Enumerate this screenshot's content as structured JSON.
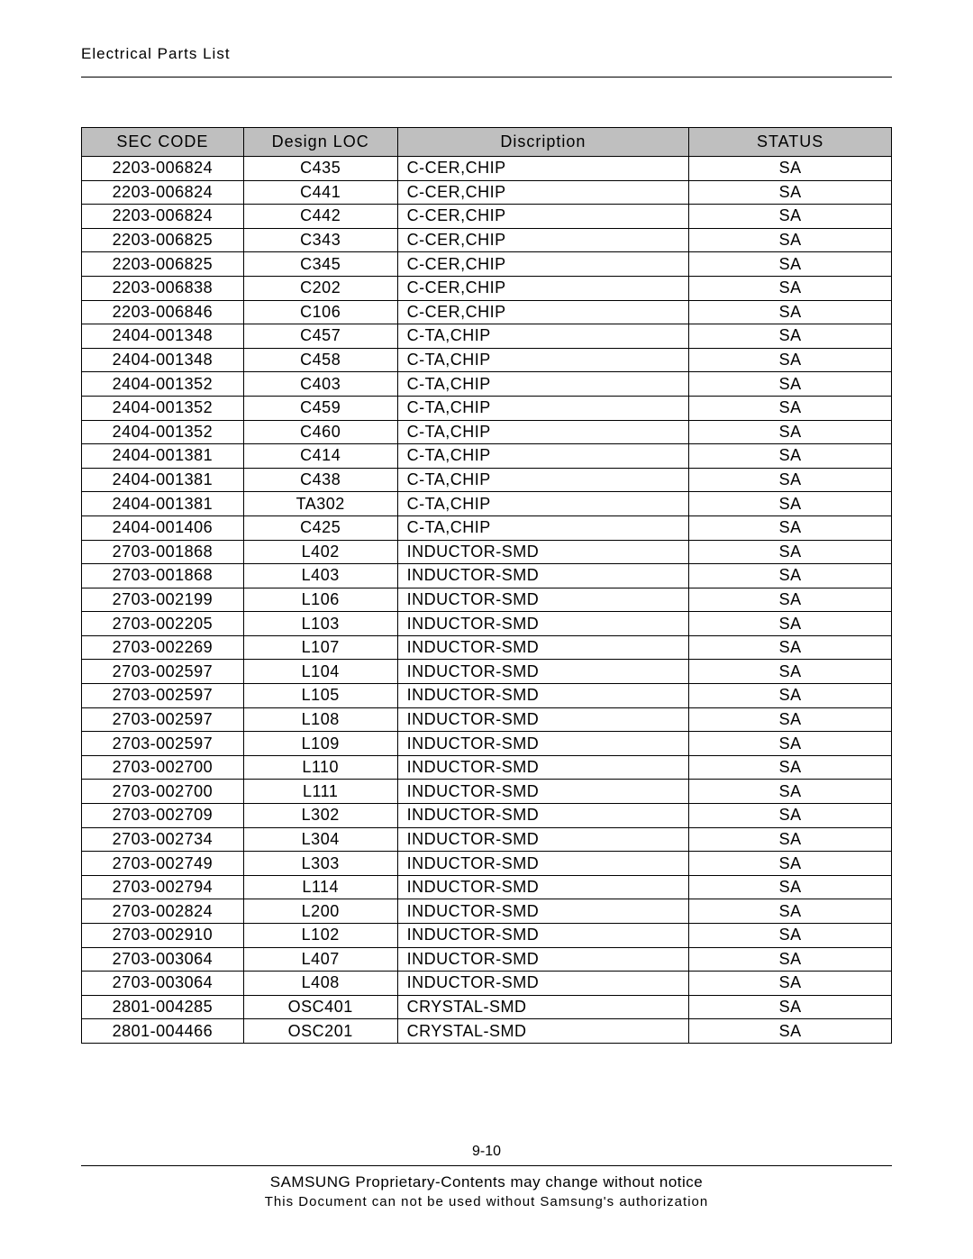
{
  "header": {
    "title": "Electrical Parts List"
  },
  "table": {
    "columns": [
      "SEC CODE",
      "Design LOC",
      "Discription",
      "STATUS"
    ],
    "column_align": [
      "center",
      "center",
      "left",
      "center"
    ],
    "header_bg": "#bfbfbf",
    "border_color": "#000000",
    "rows": [
      [
        "2203-006824",
        "C435",
        "C-CER,CHIP",
        "SA"
      ],
      [
        "2203-006824",
        "C441",
        "C-CER,CHIP",
        "SA"
      ],
      [
        "2203-006824",
        "C442",
        "C-CER,CHIP",
        "SA"
      ],
      [
        "2203-006825",
        "C343",
        "C-CER,CHIP",
        "SA"
      ],
      [
        "2203-006825",
        "C345",
        "C-CER,CHIP",
        "SA"
      ],
      [
        "2203-006838",
        "C202",
        "C-CER,CHIP",
        "SA"
      ],
      [
        "2203-006846",
        "C106",
        "C-CER,CHIP",
        "SA"
      ],
      [
        "2404-001348",
        "C457",
        "C-TA,CHIP",
        "SA"
      ],
      [
        "2404-001348",
        "C458",
        "C-TA,CHIP",
        "SA"
      ],
      [
        "2404-001352",
        "C403",
        "C-TA,CHIP",
        "SA"
      ],
      [
        "2404-001352",
        "C459",
        "C-TA,CHIP",
        "SA"
      ],
      [
        "2404-001352",
        "C460",
        "C-TA,CHIP",
        "SA"
      ],
      [
        "2404-001381",
        "C414",
        "C-TA,CHIP",
        "SA"
      ],
      [
        "2404-001381",
        "C438",
        "C-TA,CHIP",
        "SA"
      ],
      [
        "2404-001381",
        "TA302",
        "C-TA,CHIP",
        "SA"
      ],
      [
        "2404-001406",
        "C425",
        "C-TA,CHIP",
        "SA"
      ],
      [
        "2703-001868",
        "L402",
        "INDUCTOR-SMD",
        "SA"
      ],
      [
        "2703-001868",
        "L403",
        "INDUCTOR-SMD",
        "SA"
      ],
      [
        "2703-002199",
        "L106",
        "INDUCTOR-SMD",
        "SA"
      ],
      [
        "2703-002205",
        "L103",
        "INDUCTOR-SMD",
        "SA"
      ],
      [
        "2703-002269",
        "L107",
        "INDUCTOR-SMD",
        "SA"
      ],
      [
        "2703-002597",
        "L104",
        "INDUCTOR-SMD",
        "SA"
      ],
      [
        "2703-002597",
        "L105",
        "INDUCTOR-SMD",
        "SA"
      ],
      [
        "2703-002597",
        "L108",
        "INDUCTOR-SMD",
        "SA"
      ],
      [
        "2703-002597",
        "L109",
        "INDUCTOR-SMD",
        "SA"
      ],
      [
        "2703-002700",
        "L110",
        "INDUCTOR-SMD",
        "SA"
      ],
      [
        "2703-002700",
        "L111",
        "INDUCTOR-SMD",
        "SA"
      ],
      [
        "2703-002709",
        "L302",
        "INDUCTOR-SMD",
        "SA"
      ],
      [
        "2703-002734",
        "L304",
        "INDUCTOR-SMD",
        "SA"
      ],
      [
        "2703-002749",
        "L303",
        "INDUCTOR-SMD",
        "SA"
      ],
      [
        "2703-002794",
        "L114",
        "INDUCTOR-SMD",
        "SA"
      ],
      [
        "2703-002824",
        "L200",
        "INDUCTOR-SMD",
        "SA"
      ],
      [
        "2703-002910",
        "L102",
        "INDUCTOR-SMD",
        "SA"
      ],
      [
        "2703-003064",
        "L407",
        "INDUCTOR-SMD",
        "SA"
      ],
      [
        "2703-003064",
        "L408",
        "INDUCTOR-SMD",
        "SA"
      ],
      [
        "2801-004285",
        "OSC401",
        "CRYSTAL-SMD",
        "SA"
      ],
      [
        "2801-004466",
        "OSC201",
        "CRYSTAL-SMD",
        "SA"
      ]
    ]
  },
  "footer": {
    "page_number": "9-10",
    "proprietary": "SAMSUNG Proprietary-Contents may change without notice",
    "restriction": "This Document can not be used without Samsung's authorization"
  }
}
